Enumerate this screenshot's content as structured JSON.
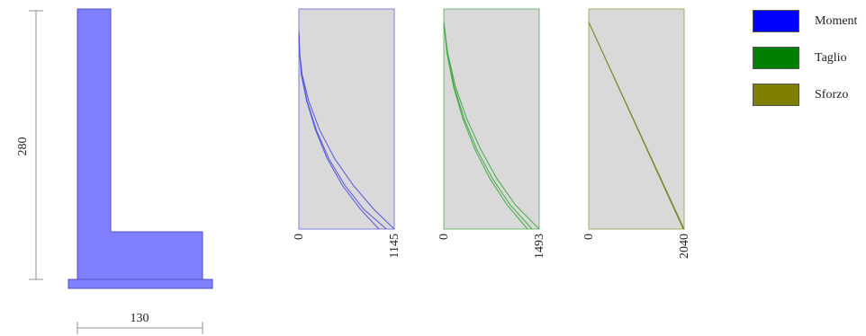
{
  "section": {
    "height_label": "280",
    "width_label": "130",
    "fill_color": "#8080ff",
    "edge_color": "#5050c0"
  },
  "legend": {
    "items": [
      {
        "label": "Moment",
        "color": "#0000ff"
      },
      {
        "label": "Taglio",
        "color": "#008000"
      },
      {
        "label": "Sforzo",
        "color": "#808000"
      }
    ]
  },
  "chart_data": [
    {
      "type": "line",
      "name": "Moment",
      "color": "#5555dd",
      "frame_color": "#8080e0",
      "x_ticks": [
        "0",
        "1145"
      ],
      "xlim": [
        0,
        1145
      ],
      "depth_lim": [
        0,
        1
      ],
      "series": [
        {
          "x": [
            0,
            10,
            40,
            120,
            250,
            430,
            650,
            900,
            1145
          ],
          "depth": [
            0.1,
            0.2,
            0.3,
            0.42,
            0.55,
            0.68,
            0.8,
            0.91,
            1.0
          ]
        },
        {
          "x": [
            0,
            10,
            35,
            100,
            210,
            360,
            550,
            780,
            1050
          ],
          "depth": [
            0.1,
            0.2,
            0.3,
            0.42,
            0.55,
            0.68,
            0.8,
            0.91,
            1.0
          ]
        },
        {
          "x": [
            0,
            8,
            30,
            95,
            200,
            340,
            520,
            740,
            960
          ],
          "depth": [
            0.1,
            0.2,
            0.3,
            0.42,
            0.55,
            0.68,
            0.8,
            0.91,
            1.0
          ]
        }
      ]
    },
    {
      "type": "line",
      "name": "Taglio",
      "color": "#44aa44",
      "frame_color": "#70b870",
      "x_ticks": [
        "0",
        "1493"
      ],
      "xlim": [
        0,
        1493
      ],
      "depth_lim": [
        0,
        1
      ],
      "series": [
        {
          "x": [
            0,
            60,
            180,
            360,
            580,
            830,
            1120,
            1493
          ],
          "depth": [
            0.06,
            0.2,
            0.35,
            0.5,
            0.64,
            0.77,
            0.89,
            1.0
          ]
        },
        {
          "x": [
            0,
            55,
            160,
            320,
            520,
            760,
            1040,
            1380
          ],
          "depth": [
            0.06,
            0.2,
            0.35,
            0.5,
            0.64,
            0.77,
            0.89,
            1.0
          ]
        },
        {
          "x": [
            0,
            50,
            150,
            300,
            490,
            720,
            990,
            1310
          ],
          "depth": [
            0.06,
            0.2,
            0.35,
            0.5,
            0.64,
            0.77,
            0.89,
            1.0
          ]
        }
      ]
    },
    {
      "type": "line",
      "name": "Sforzo",
      "color": "#7a8a2a",
      "frame_color": "#a4ac6a",
      "x_ticks": [
        "0",
        "2040"
      ],
      "xlim": [
        0,
        2040
      ],
      "depth_lim": [
        0,
        1
      ],
      "series": [
        {
          "x": [
            0,
            2040
          ],
          "depth": [
            0.06,
            1.0
          ]
        },
        {
          "x": [
            0,
            2020
          ],
          "depth": [
            0.06,
            1.0
          ]
        }
      ]
    }
  ]
}
